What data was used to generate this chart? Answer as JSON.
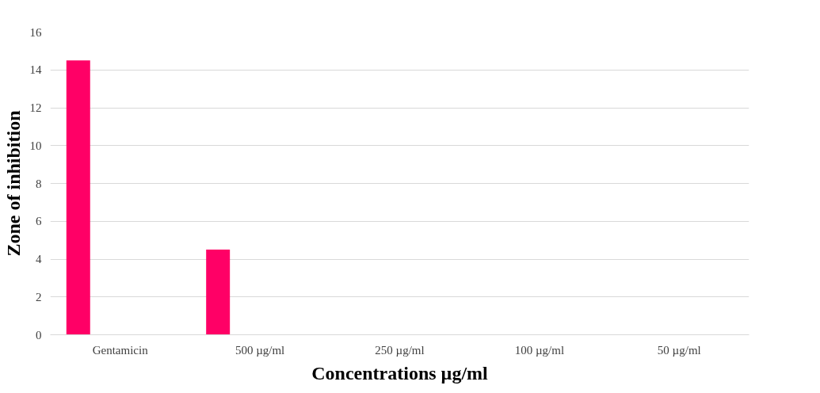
{
  "chart_data": {
    "type": "bar",
    "xlabel": "Concentrations µg/ml",
    "ylabel": "Zone of inhibition",
    "categories": [
      "Gentamicin",
      "500 µg/ml",
      "250 µg/ml",
      "100 µg/ml",
      "50 µg/ml"
    ],
    "series": [
      {
        "color": "#ff0066",
        "values": [
          14.5,
          4.5,
          0,
          0,
          0
        ]
      }
    ],
    "ylim": [
      0,
      16
    ],
    "yticks": [
      0,
      2,
      4,
      6,
      8,
      10,
      12,
      14,
      16
    ],
    "grid": "y"
  }
}
